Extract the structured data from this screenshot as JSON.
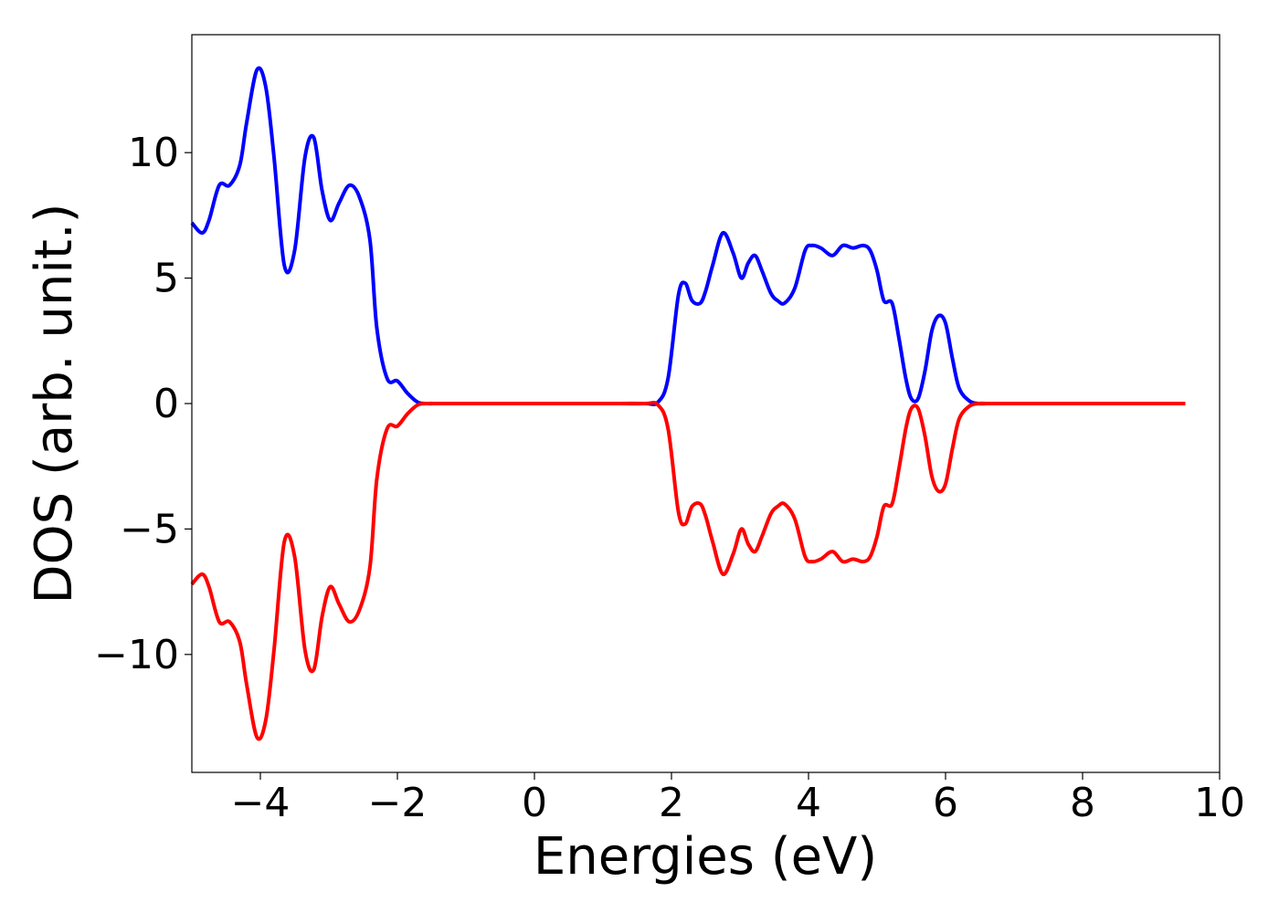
{
  "chart_data": {
    "type": "line",
    "title": "",
    "xlabel": "Energies (eV)",
    "ylabel": "DOS (arb. unit.)",
    "xlim": [
      -5,
      10
    ],
    "ylim": [
      -14.7,
      14.7
    ],
    "xticks": [
      -4,
      -2,
      0,
      2,
      4,
      6,
      8,
      10
    ],
    "xtick_labels": [
      "−4",
      "−2",
      "0",
      "2",
      "4",
      "6",
      "8",
      "10"
    ],
    "yticks": [
      10,
      5,
      0,
      -5,
      -10
    ],
    "ytick_labels": [
      "10",
      "5",
      "0",
      "−5",
      "−10"
    ],
    "grid": false,
    "legend": "none",
    "series": [
      {
        "color": "#0000ff",
        "x": [
          -5.0,
          -4.85,
          -4.75,
          -4.6,
          -4.45,
          -4.3,
          -4.2,
          -4.05,
          -3.92,
          -3.8,
          -3.65,
          -3.5,
          -3.35,
          -3.22,
          -3.1,
          -2.98,
          -2.85,
          -2.7,
          -2.55,
          -2.4,
          -2.3,
          -2.15,
          -2.0,
          -1.85,
          -1.7,
          -1.55,
          -1.45,
          -1.35,
          -1.2,
          -1.05,
          -0.9,
          -0.7,
          -0.5,
          0.0,
          1.0,
          1.6,
          1.8,
          1.95,
          2.1,
          2.2,
          2.3,
          2.42,
          2.5,
          2.6,
          2.75,
          2.9,
          3.02,
          3.12,
          3.22,
          3.32,
          3.45,
          3.55,
          3.65,
          3.8,
          3.95,
          4.05,
          4.18,
          4.35,
          4.5,
          4.65,
          4.8,
          4.9,
          5.0,
          5.1,
          5.22,
          5.32,
          5.42,
          5.5,
          5.6,
          5.7,
          5.8,
          5.9,
          6.0,
          6.1,
          6.2,
          6.35,
          6.48,
          6.6,
          6.75,
          6.9,
          7.05,
          7.2,
          7.35,
          7.5,
          7.7,
          7.9,
          8.2,
          9.5
        ],
        "y": [
          7.2,
          6.8,
          7.3,
          8.7,
          8.7,
          9.5,
          11.2,
          13.3,
          12.6,
          9.8,
          5.5,
          6.1,
          9.8,
          10.6,
          8.5,
          7.3,
          8.0,
          8.7,
          8.2,
          6.5,
          3.0,
          1.0,
          0.9,
          0.4,
          0.05,
          0.0,
          0.0,
          0.0,
          0.0,
          0.0,
          0.0,
          0.0,
          0.0,
          0.0,
          0.0,
          0.0,
          0.05,
          1.0,
          4.3,
          4.8,
          4.1,
          4.0,
          4.5,
          5.5,
          6.8,
          6.0,
          5.0,
          5.6,
          5.9,
          5.3,
          4.4,
          4.1,
          4.0,
          4.6,
          6.1,
          6.3,
          6.2,
          5.9,
          6.3,
          6.2,
          6.3,
          6.1,
          5.3,
          4.1,
          4.0,
          2.6,
          1.0,
          0.2,
          0.2,
          1.3,
          2.9,
          3.5,
          3.2,
          1.8,
          0.6,
          0.1,
          0.0,
          0.0,
          0.0,
          0.0,
          0.0,
          0.0,
          0.0,
          0.0,
          0.0,
          0.0,
          0.0,
          0.0
        ]
      },
      {
        "color": "#ff0000",
        "x": [
          -5.0,
          -4.85,
          -4.75,
          -4.6,
          -4.45,
          -4.3,
          -4.2,
          -4.05,
          -3.92,
          -3.8,
          -3.65,
          -3.5,
          -3.35,
          -3.22,
          -3.1,
          -2.98,
          -2.85,
          -2.7,
          -2.55,
          -2.4,
          -2.3,
          -2.15,
          -2.0,
          -1.85,
          -1.7,
          -1.55,
          -1.45,
          -1.35,
          -1.2,
          -1.05,
          -0.9,
          -0.7,
          -0.5,
          0.0,
          1.0,
          1.6,
          1.8,
          1.95,
          2.1,
          2.2,
          2.3,
          2.42,
          2.5,
          2.6,
          2.75,
          2.9,
          3.02,
          3.12,
          3.22,
          3.32,
          3.45,
          3.55,
          3.65,
          3.8,
          3.95,
          4.05,
          4.18,
          4.35,
          4.5,
          4.65,
          4.8,
          4.9,
          5.0,
          5.1,
          5.22,
          5.32,
          5.42,
          5.5,
          5.6,
          5.7,
          5.8,
          5.9,
          6.0,
          6.1,
          6.2,
          6.35,
          6.48,
          6.6,
          6.75,
          6.9,
          7.05,
          7.2,
          7.35,
          7.5,
          7.7,
          7.9,
          8.2,
          9.5
        ],
        "y": [
          -7.2,
          -6.8,
          -7.3,
          -8.7,
          -8.7,
          -9.5,
          -11.2,
          -13.3,
          -12.6,
          -9.8,
          -5.5,
          -6.1,
          -9.8,
          -10.6,
          -8.5,
          -7.3,
          -8.0,
          -8.7,
          -8.2,
          -6.5,
          -3.0,
          -1.0,
          -0.9,
          -0.4,
          -0.05,
          0.0,
          0.0,
          0.0,
          0.0,
          0.0,
          0.0,
          0.0,
          0.0,
          0.0,
          0.0,
          0.0,
          -0.05,
          -1.0,
          -4.3,
          -4.8,
          -4.1,
          -4.0,
          -4.5,
          -5.5,
          -6.8,
          -6.0,
          -5.0,
          -5.6,
          -5.9,
          -5.3,
          -4.4,
          -4.1,
          -4.0,
          -4.6,
          -6.1,
          -6.3,
          -6.2,
          -5.9,
          -6.3,
          -6.2,
          -6.3,
          -6.1,
          -5.3,
          -4.1,
          -4.0,
          -2.6,
          -1.0,
          -0.2,
          -0.2,
          -1.3,
          -2.9,
          -3.5,
          -3.2,
          -1.8,
          -0.6,
          -0.1,
          0.0,
          0.0,
          0.0,
          0.0,
          0.0,
          0.0,
          0.0,
          0.0,
          0.0,
          0.0,
          0.0,
          0.0
        ]
      }
    ]
  }
}
